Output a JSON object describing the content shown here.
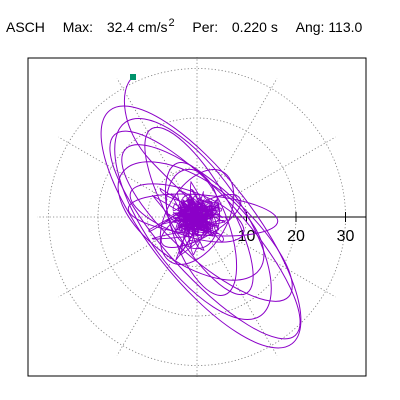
{
  "header": {
    "station": "ASCH",
    "max_label": "Max:",
    "max_value": "32.4 cm/s",
    "max_exp": "2",
    "per_label": "Per:",
    "per_value": "0.220 s",
    "ang_label": "Ang:",
    "ang_value": "113.0"
  },
  "chart_data": {
    "type": "scatter",
    "title": "",
    "xlabel": "",
    "ylabel": "",
    "radial_ticks": [
      "10",
      "20",
      "30"
    ],
    "radial_tick_values": [
      10,
      20,
      30
    ],
    "rlim": [
      0,
      35
    ],
    "grid": true,
    "grid_style": "dotted",
    "angle_spokes_deg": 30,
    "trace_color": "#8b00c8",
    "marker_color": "#00936b",
    "trace_start_marker": true
  }
}
